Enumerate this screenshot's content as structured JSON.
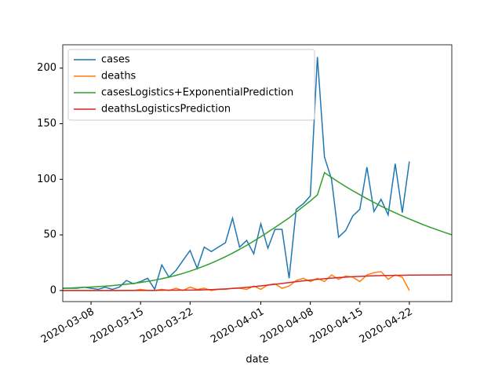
{
  "chart_data": {
    "type": "line",
    "xlabel": "date",
    "x": [
      "2020-03-04",
      "2020-03-05",
      "2020-03-06",
      "2020-03-07",
      "2020-03-08",
      "2020-03-09",
      "2020-03-10",
      "2020-03-11",
      "2020-03-12",
      "2020-03-13",
      "2020-03-14",
      "2020-03-15",
      "2020-03-16",
      "2020-03-17",
      "2020-03-18",
      "2020-03-19",
      "2020-03-20",
      "2020-03-21",
      "2020-03-22",
      "2020-03-23",
      "2020-03-24",
      "2020-03-25",
      "2020-03-26",
      "2020-03-27",
      "2020-03-28",
      "2020-03-29",
      "2020-03-30",
      "2020-03-31",
      "2020-04-01",
      "2020-04-02",
      "2020-04-03",
      "2020-04-04",
      "2020-04-05",
      "2020-04-06",
      "2020-04-07",
      "2020-04-08",
      "2020-04-09",
      "2020-04-10",
      "2020-04-11",
      "2020-04-12",
      "2020-04-13",
      "2020-04-14",
      "2020-04-15",
      "2020-04-16",
      "2020-04-17",
      "2020-04-18",
      "2020-04-19",
      "2020-04-20",
      "2020-04-21",
      "2020-04-22",
      "2020-04-23",
      "2020-04-24",
      "2020-04-25",
      "2020-04-26",
      "2020-04-27",
      "2020-04-28"
    ],
    "series": [
      {
        "name": "cases",
        "color": "#1f77b4",
        "values": [
          2,
          2,
          2,
          3,
          2,
          1,
          3,
          1,
          3,
          9,
          6,
          8,
          11,
          1,
          23,
          12,
          18,
          27,
          36,
          20,
          39,
          35,
          39,
          43,
          65,
          39,
          45,
          33,
          60,
          38,
          55,
          55,
          11,
          73,
          78,
          85,
          210,
          120,
          100,
          48,
          54,
          67,
          73,
          111,
          71,
          82,
          68,
          114,
          70,
          116,
          null,
          null,
          null,
          null,
          null,
          null
        ]
      },
      {
        "name": "deaths",
        "color": "#ff7f0e",
        "values": [
          0,
          0,
          0,
          0,
          0,
          0,
          0,
          0,
          0,
          0,
          0,
          1,
          0,
          0,
          1,
          0,
          2,
          0,
          3,
          1,
          2,
          0,
          1,
          1,
          2,
          2,
          1,
          4,
          1,
          5,
          6,
          2,
          4,
          9,
          11,
          8,
          11,
          8,
          14,
          10,
          13,
          12,
          8,
          14,
          16,
          17,
          10,
          14,
          12,
          0,
          null,
          null,
          null,
          null,
          null,
          null
        ]
      },
      {
        "name": "casesLogistics+ExponentialPrediction",
        "color": "#2ca02c",
        "values": [
          2,
          2.2,
          2.5,
          2.8,
          3.1,
          3.5,
          3.9,
          4.4,
          5,
          5.6,
          6.3,
          7.2,
          8.2,
          9.3,
          10.6,
          12,
          13.6,
          15.4,
          17.4,
          19.6,
          22,
          24.6,
          27.4,
          30.4,
          33.6,
          37,
          40.6,
          44.4,
          48.4,
          52.5,
          56.7,
          61,
          65.3,
          70.5,
          75.5,
          80.5,
          86,
          106,
          101.7,
          97.5,
          93.5,
          89.7,
          86.1,
          82.6,
          79.2,
          75.9,
          72.8,
          69.9,
          67,
          64.3,
          61.7,
          59.1,
          56.7,
          54.4,
          52.2,
          50.1
        ]
      },
      {
        "name": "deathsLogisticsPrediction",
        "color": "#d62728",
        "values": [
          0,
          0,
          0,
          0,
          0,
          0,
          0,
          0,
          0,
          0.1,
          0.1,
          0.1,
          0.1,
          0.1,
          0.2,
          0.2,
          0.2,
          0.3,
          0.3,
          0.4,
          0.6,
          0.8,
          1.1,
          1.4,
          1.8,
          2.3,
          2.8,
          3.4,
          4.1,
          4.8,
          5.5,
          6.3,
          7.1,
          7.9,
          8.6,
          9.3,
          10,
          10.6,
          11.1,
          11.6,
          12,
          12.4,
          12.7,
          13,
          13.2,
          13.4,
          13.5,
          13.6,
          13.7,
          13.8,
          13.8,
          13.9,
          13.9,
          13.9,
          14,
          14
        ]
      }
    ],
    "xlim": [
      "2020-03-04",
      "2020-04-28"
    ],
    "xticks": [
      "2020-03-08",
      "2020-03-15",
      "2020-03-22",
      "2020-04-01",
      "2020-04-08",
      "2020-04-15",
      "2020-04-22"
    ],
    "ylim": [
      -10,
      221
    ],
    "yticks": [
      0,
      50,
      100,
      150,
      200
    ],
    "legend": "upper left"
  }
}
